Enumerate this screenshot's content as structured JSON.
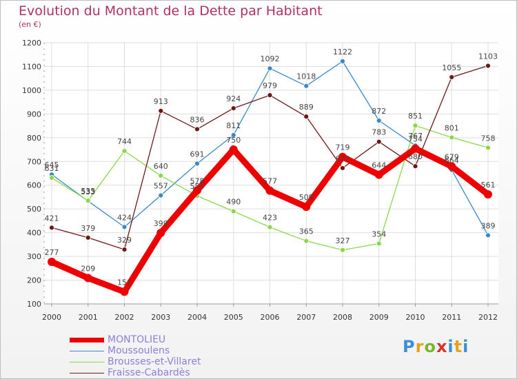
{
  "title": "Evolution du Montant de la Dette par Habitant",
  "unit": "(en €)",
  "logo": "Proxiti",
  "chart_data": {
    "type": "line",
    "x": [
      "2000",
      "2001",
      "2002",
      "2003",
      "2004",
      "2005",
      "2006",
      "2007",
      "2008",
      "2009",
      "2010",
      "2011",
      "2012"
    ],
    "ylim": [
      100,
      1200
    ],
    "yticks": [
      100,
      200,
      300,
      400,
      500,
      600,
      700,
      800,
      900,
      1000,
      1100,
      1200
    ],
    "grid": true,
    "legend_position": "bottom-left",
    "series": [
      {
        "name": "MONTOLIEU",
        "color": "#ee0000",
        "values": [
          277,
          209,
          151,
          399,
          578,
          750,
          577,
          509,
          719,
          644,
          754,
          679,
          561
        ]
      },
      {
        "name": "Moussoulens",
        "color": "#3a88c8",
        "values": [
          645,
          533,
          424,
          557,
          691,
          811,
          1092,
          1018,
          1122,
          872,
          767,
          664,
          389
        ]
      },
      {
        "name": "Brousses-et-Villaret",
        "color": "#88d84a",
        "values": [
          631,
          535,
          744,
          640,
          555,
          490,
          423,
          365,
          327,
          354,
          851,
          801,
          758
        ]
      },
      {
        "name": "Fraisse-Cabardès",
        "color": "#6e1616",
        "values": [
          421,
          379,
          329,
          913,
          836,
          924,
          979,
          889,
          672,
          783,
          680,
          1055,
          1103
        ]
      }
    ]
  }
}
